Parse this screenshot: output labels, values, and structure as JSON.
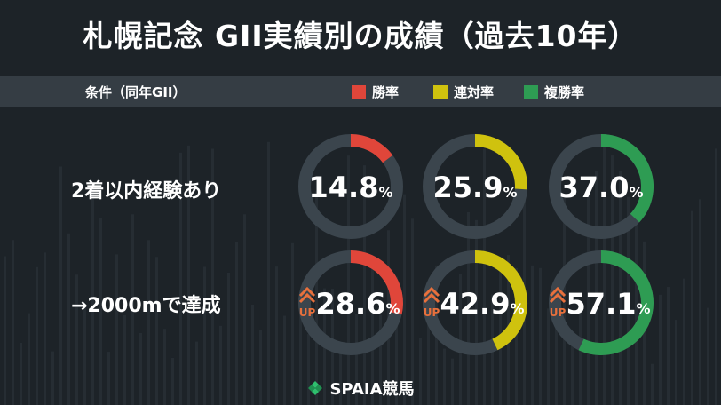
{
  "title": "札幌記念 GII実績別の成績（過去10年）",
  "header": {
    "condition_label": "条件（同年GII）",
    "legend": [
      {
        "label": "勝率",
        "color": "#e0463a"
      },
      {
        "label": "連対率",
        "color": "#cfc20e"
      },
      {
        "label": "複勝率",
        "color": "#2e9c53"
      }
    ]
  },
  "rows": [
    {
      "label": "2着以内経験あり"
    },
    {
      "label": "→2000mで達成"
    }
  ],
  "colors": {
    "background": "#1d2328",
    "band": "#353d44",
    "ring_track": "#3b454d",
    "up_marker": "#e8703c"
  },
  "chart_data": {
    "type": "donut",
    "rows": [
      "2着以内経験あり",
      "→2000mで達成"
    ],
    "series": [
      {
        "name": "勝率",
        "color": "#e0463a",
        "values": [
          14.8,
          28.6
        ]
      },
      {
        "name": "連対率",
        "color": "#cfc20e",
        "values": [
          25.9,
          42.9
        ]
      },
      {
        "name": "複勝率",
        "color": "#2e9c53",
        "values": [
          37.0,
          57.1
        ]
      }
    ],
    "unit": "%",
    "display": [
      [
        "14.8",
        "25.9",
        "37.0"
      ],
      [
        "28.6",
        "42.9",
        "57.1"
      ]
    ],
    "up_marker": [
      [
        false,
        false,
        false
      ],
      [
        true,
        true,
        true
      ]
    ],
    "up_label": "UP"
  },
  "footer": {
    "logo_text": "SPAIA競馬"
  }
}
